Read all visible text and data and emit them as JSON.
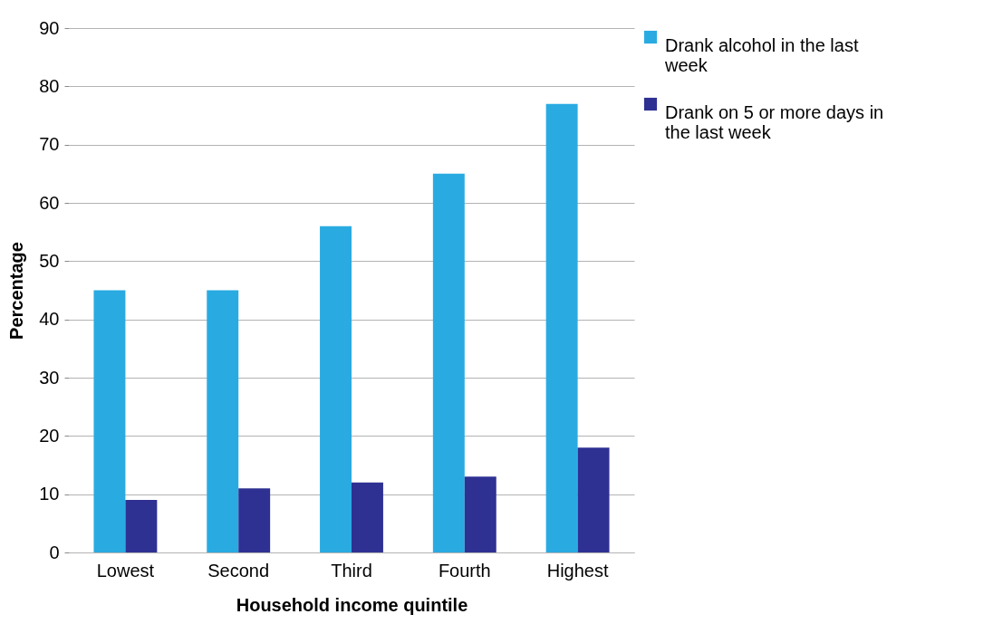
{
  "chart_data": {
    "type": "bar",
    "xlabel": "Household income quintile",
    "ylabel": "Percentage",
    "categories": [
      "Lowest",
      "Second",
      "Third",
      "Fourth",
      "Highest"
    ],
    "series": [
      {
        "name": "Drank alcohol in the last week",
        "color": "#29abe2",
        "values": [
          45,
          45,
          56,
          65,
          77
        ]
      },
      {
        "name": "Drank on 5 or more days in the last week",
        "color": "#2e3192",
        "values": [
          9,
          11,
          12,
          13,
          18
        ]
      }
    ],
    "ylim": [
      0,
      90
    ],
    "yticks": [
      0,
      10,
      20,
      30,
      40,
      50,
      60,
      70,
      80,
      90
    ],
    "grid": "y",
    "legend": "right"
  }
}
